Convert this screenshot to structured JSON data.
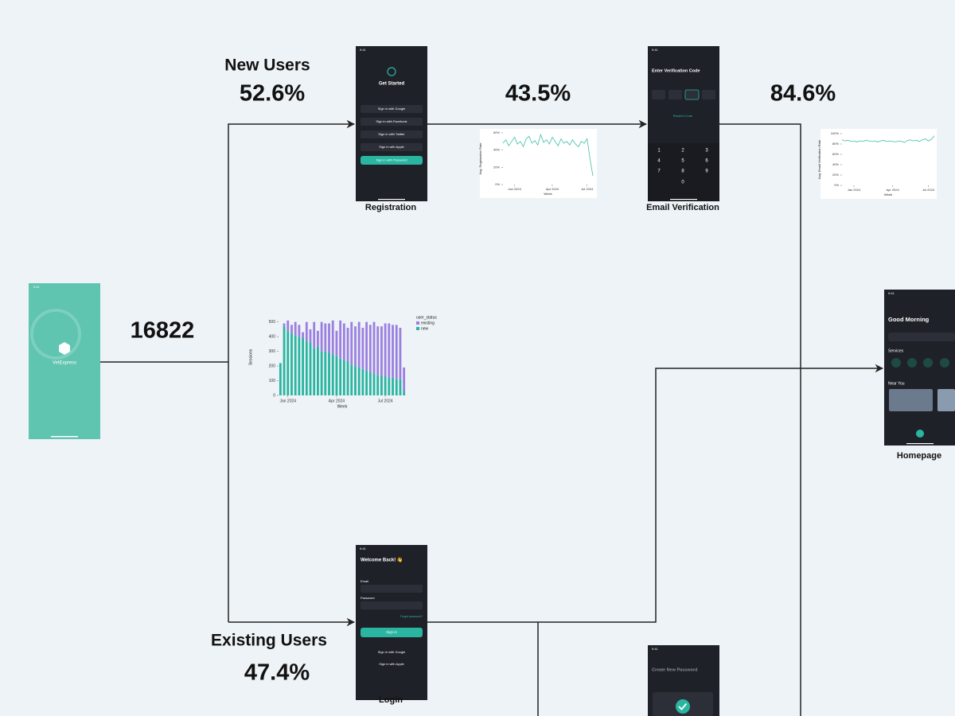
{
  "flow": {
    "total": "16822",
    "new_users": {
      "label": "New Users",
      "share": "52.6%"
    },
    "existing_users": {
      "label": "Existing Users",
      "share": "47.4%"
    },
    "registration_rate": "43.5%",
    "verification_rate": "84.6%"
  },
  "screens": {
    "splash": {
      "time": "9:41",
      "brand": "VetExpress"
    },
    "registration": {
      "caption": "Registration",
      "time": "9:41",
      "title": "Get Started",
      "buttons": [
        "Sign in with Google",
        "Sign in with Facebook",
        "Sign in with Twitter",
        "Sign in with Apple"
      ],
      "primary": "Sign in with Password"
    },
    "email_verification": {
      "caption": "Email Verification",
      "time": "9:41",
      "title": "Enter Verification Code",
      "resend": "Resend Code",
      "keys": [
        "1",
        "2",
        "3",
        "4",
        "5",
        "6",
        "7",
        "8",
        "9",
        "0"
      ]
    },
    "homepage": {
      "caption": "Homepage",
      "time": "9:41",
      "greeting": "Good Morning",
      "services": "Services",
      "near_you": "Near You"
    },
    "login": {
      "caption": "Login",
      "time": "9:41",
      "title": "Welcome Back! 👋",
      "email": "Email",
      "password": "Password",
      "forgot": "Forgot password?",
      "sign_in": "Sign in",
      "google": "Sign in with Google",
      "apple": "Sign in with Apple"
    },
    "new_password": {
      "time": "9:41",
      "title": "Create New Password"
    }
  },
  "chart_data": [
    {
      "type": "line",
      "ylabel": "Avg. Registration Rate",
      "xlabel": "Week",
      "color": "#3cbfa5",
      "x": [
        0,
        1,
        2,
        3,
        4,
        5,
        6,
        7,
        8,
        9,
        10,
        11,
        12,
        13,
        14,
        15,
        16,
        17,
        18,
        19,
        20,
        21,
        22,
        23,
        24,
        25,
        26,
        27,
        28,
        29,
        30,
        31
      ],
      "values": [
        48,
        52,
        45,
        50,
        55,
        47,
        50,
        44,
        53,
        56,
        48,
        51,
        46,
        58,
        49,
        52,
        47,
        55,
        50,
        45,
        53,
        48,
        50,
        46,
        52,
        47,
        44,
        50,
        48,
        53,
        30,
        10
      ],
      "xlim": [
        0,
        31
      ],
      "ylim": [
        0,
        60
      ],
      "xticks": [
        {
          "value": 4,
          "label": "Jan 2024"
        },
        {
          "value": 17,
          "label": "Apr 2024"
        },
        {
          "value": 29,
          "label": "Jul 2024"
        }
      ],
      "yticks": [
        {
          "value": 0,
          "label": "0%"
        },
        {
          "value": 20,
          "label": "20%"
        },
        {
          "value": 40,
          "label": "40%"
        },
        {
          "value": 60,
          "label": "60%"
        }
      ]
    },
    {
      "type": "line",
      "ylabel": "Avg. Email Verification Rate",
      "xlabel": "Week",
      "color": "#3cbfa5",
      "x": [
        0,
        1,
        2,
        3,
        4,
        5,
        6,
        7,
        8,
        9,
        10,
        11,
        12,
        13,
        14,
        15,
        16,
        17,
        18,
        19,
        20,
        21,
        22,
        23,
        24,
        25,
        26,
        27,
        28,
        29,
        30,
        31
      ],
      "values": [
        88,
        86,
        87,
        85,
        86,
        84,
        86,
        85,
        87,
        86,
        85,
        86,
        84,
        86,
        87,
        85,
        86,
        85,
        84,
        86,
        85,
        83,
        87,
        88,
        86,
        87,
        85,
        88,
        90,
        86,
        89,
        96
      ],
      "xlim": [
        0,
        31
      ],
      "ylim": [
        0,
        100
      ],
      "xticks": [
        {
          "value": 4,
          "label": "Jan 2024"
        },
        {
          "value": 17,
          "label": "Apr 2024"
        },
        {
          "value": 29,
          "label": "Jul 2024"
        }
      ],
      "yticks": [
        {
          "value": 0,
          "label": "0%"
        },
        {
          "value": 20,
          "label": "20%"
        },
        {
          "value": 40,
          "label": "40%"
        },
        {
          "value": 60,
          "label": "60%"
        },
        {
          "value": 80,
          "label": "80%"
        },
        {
          "value": 100,
          "label": "100%"
        }
      ]
    },
    {
      "type": "stacked_bar",
      "ylabel": "Sessions",
      "xlabel": "Week",
      "legend_title": "user_status",
      "x": [
        0,
        1,
        2,
        3,
        4,
        5,
        6,
        7,
        8,
        9,
        10,
        11,
        12,
        13,
        14,
        15,
        16,
        17,
        18,
        19,
        20,
        21,
        22,
        23,
        24,
        25,
        26,
        27,
        28,
        29,
        30,
        31,
        32,
        33
      ],
      "series": [
        {
          "name": "new",
          "color": "#2ab5a0",
          "values": [
            220,
            470,
            440,
            420,
            410,
            400,
            390,
            370,
            360,
            320,
            330,
            300,
            300,
            290,
            280,
            270,
            250,
            240,
            230,
            210,
            200,
            190,
            180,
            170,
            160,
            150,
            140,
            130,
            130,
            120,
            120,
            110,
            110,
            30
          ]
        },
        {
          "name": "existing",
          "color": "#9b7fe0",
          "values": [
            0,
            20,
            70,
            60,
            90,
            80,
            40,
            130,
            90,
            180,
            110,
            200,
            190,
            200,
            230,
            170,
            260,
            250,
            230,
            290,
            270,
            310,
            280,
            330,
            320,
            350,
            330,
            340,
            360,
            370,
            360,
            370,
            350,
            160
          ]
        }
      ],
      "xlim": [
        -0.5,
        33.5
      ],
      "ylim": [
        0,
        520
      ],
      "xticks": [
        {
          "value": 2,
          "label": "Jan 2024"
        },
        {
          "value": 15,
          "label": "Apr 2024"
        },
        {
          "value": 28,
          "label": "Jul 2024"
        }
      ],
      "yticks": [
        0,
        100,
        200,
        300,
        400,
        500
      ]
    }
  ]
}
